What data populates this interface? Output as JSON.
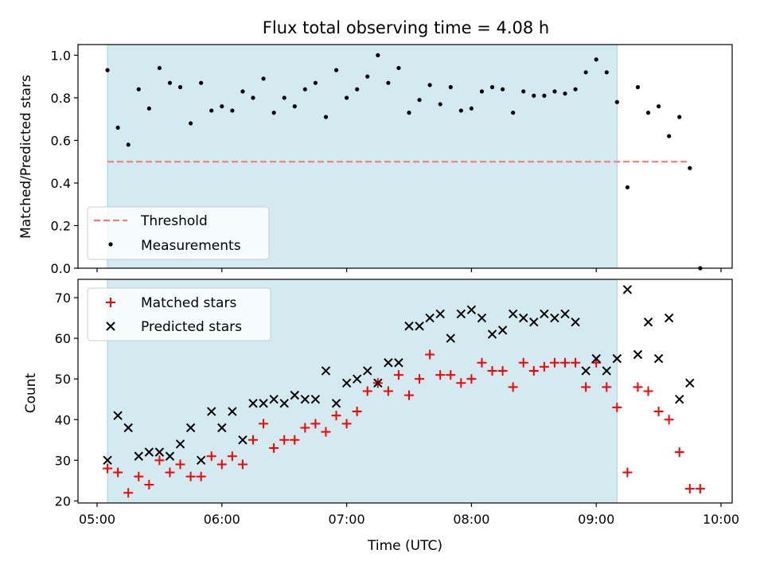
{
  "title": "Flux total observing time = 4.08 h",
  "colors": {
    "band": "#d2eaf0",
    "threshold": "#f08080",
    "measure": "#000000",
    "matched": "#ff0000",
    "predicted": "#000000"
  },
  "chart_data": [
    {
      "type": "scatter",
      "ylabel": "Matched/Predicted stars",
      "ylim": [
        0,
        1.05
      ],
      "yticks": [
        0,
        0.2,
        0.4,
        0.6,
        0.8,
        1.0
      ],
      "ytick_labels": [
        "0.0",
        "0.2",
        "0.4",
        "0.6",
        "0.8",
        "1.0"
      ],
      "xlim": [
        "05:00",
        "10:00"
      ],
      "shaded_span": [
        "05:05",
        "09:10"
      ],
      "threshold": {
        "value": 0.5,
        "x": [
          "05:05",
          "09:45"
        ]
      },
      "legend": {
        "position": "lower-left",
        "entries": [
          "Threshold",
          "Measurements"
        ]
      },
      "series": [
        {
          "name": "Measurements",
          "x": [
            "05:05",
            "05:10",
            "05:15",
            "05:20",
            "05:25",
            "05:30",
            "05:35",
            "05:40",
            "05:45",
            "05:50",
            "05:55",
            "06:00",
            "06:05",
            "06:10",
            "06:15",
            "06:20",
            "06:25",
            "06:30",
            "06:35",
            "06:40",
            "06:45",
            "06:50",
            "06:55",
            "07:00",
            "07:05",
            "07:10",
            "07:15",
            "07:20",
            "07:25",
            "07:30",
            "07:35",
            "07:40",
            "07:45",
            "07:50",
            "07:55",
            "08:00",
            "08:05",
            "08:10",
            "08:15",
            "08:20",
            "08:25",
            "08:30",
            "08:35",
            "08:40",
            "08:45",
            "08:50",
            "08:55",
            "09:00",
            "09:05",
            "09:10",
            "09:15",
            "09:20",
            "09:25",
            "09:30",
            "09:35",
            "09:40",
            "09:45",
            "09:50"
          ],
          "y": [
            0.93,
            0.66,
            0.58,
            0.84,
            0.75,
            0.94,
            0.87,
            0.85,
            0.68,
            0.87,
            0.74,
            0.76,
            0.74,
            0.83,
            0.8,
            0.89,
            0.73,
            0.8,
            0.76,
            0.84,
            0.87,
            0.71,
            0.93,
            0.8,
            0.84,
            0.9,
            1.0,
            0.87,
            0.94,
            0.73,
            0.79,
            0.86,
            0.77,
            0.85,
            0.74,
            0.75,
            0.83,
            0.85,
            0.84,
            0.73,
            0.83,
            0.81,
            0.81,
            0.83,
            0.82,
            0.84,
            0.92,
            0.98,
            0.92,
            0.78,
            0.38,
            0.85,
            0.73,
            0.76,
            0.62,
            0.71,
            0.47,
            0.0
          ]
        }
      ]
    },
    {
      "type": "scatter",
      "xlabel": "Time (UTC)",
      "ylabel": "Count",
      "ylim": [
        19.5,
        74.5
      ],
      "yticks": [
        20,
        30,
        40,
        50,
        60,
        70
      ],
      "ytick_labels": [
        "20",
        "30",
        "40",
        "50",
        "60",
        "70"
      ],
      "xlim": [
        "05:00",
        "10:00"
      ],
      "xticks": [
        "05:00",
        "06:00",
        "07:00",
        "08:00",
        "09:00",
        "10:00"
      ],
      "shaded_span": [
        "05:05",
        "09:10"
      ],
      "legend": {
        "position": "top-left",
        "entries": [
          "Matched stars",
          "Predicted stars"
        ]
      },
      "series": [
        {
          "name": "Matched stars",
          "x": [
            "05:05",
            "05:10",
            "05:15",
            "05:20",
            "05:25",
            "05:30",
            "05:35",
            "05:40",
            "05:45",
            "05:50",
            "05:55",
            "06:00",
            "06:05",
            "06:10",
            "06:15",
            "06:20",
            "06:25",
            "06:30",
            "06:35",
            "06:40",
            "06:45",
            "06:50",
            "06:55",
            "07:00",
            "07:05",
            "07:10",
            "07:15",
            "07:20",
            "07:25",
            "07:30",
            "07:35",
            "07:40",
            "07:45",
            "07:50",
            "07:55",
            "08:00",
            "08:05",
            "08:10",
            "08:15",
            "08:20",
            "08:25",
            "08:30",
            "08:35",
            "08:40",
            "08:45",
            "08:50",
            "08:55",
            "09:00",
            "09:05",
            "09:10",
            "09:15",
            "09:20",
            "09:25",
            "09:30",
            "09:35",
            "09:40",
            "09:45",
            "09:50"
          ],
          "y": [
            28,
            27,
            22,
            26,
            24,
            30,
            27,
            29,
            26,
            26,
            31,
            29,
            31,
            29,
            35,
            39,
            33,
            35,
            35,
            38,
            39,
            37,
            41,
            39,
            42,
            47,
            49,
            47,
            51,
            46,
            50,
            56,
            51,
            51,
            49,
            50,
            54,
            52,
            52,
            48,
            54,
            52,
            53,
            54,
            54,
            54,
            48,
            54,
            48,
            43,
            27,
            48,
            47,
            42,
            40,
            32,
            23,
            23
          ]
        },
        {
          "name": "Predicted stars",
          "x": [
            "05:05",
            "05:10",
            "05:15",
            "05:20",
            "05:25",
            "05:30",
            "05:35",
            "05:40",
            "05:45",
            "05:50",
            "05:55",
            "06:00",
            "06:05",
            "06:10",
            "06:15",
            "06:20",
            "06:25",
            "06:30",
            "06:35",
            "06:40",
            "06:45",
            "06:50",
            "06:55",
            "07:00",
            "07:05",
            "07:10",
            "07:15",
            "07:20",
            "07:25",
            "07:30",
            "07:35",
            "07:40",
            "07:45",
            "07:50",
            "07:55",
            "08:00",
            "08:05",
            "08:10",
            "08:15",
            "08:20",
            "08:25",
            "08:30",
            "08:35",
            "08:40",
            "08:45",
            "08:50",
            "08:55",
            "09:00",
            "09:05",
            "09:10",
            "09:15",
            "09:20",
            "09:25",
            "09:30",
            "09:35",
            "09:40",
            "09:45"
          ],
          "y": [
            30,
            41,
            38,
            31,
            32,
            32,
            31,
            34,
            38,
            30,
            42,
            38,
            42,
            35,
            44,
            44,
            45,
            44,
            46,
            45,
            45,
            52,
            44,
            49,
            50,
            52,
            49,
            54,
            54,
            63,
            63,
            65,
            66,
            60,
            66,
            67,
            65,
            61,
            62,
            66,
            65,
            64,
            66,
            65,
            66,
            64,
            52,
            55,
            52,
            55,
            72,
            56,
            64,
            55,
            65,
            45,
            49
          ]
        }
      ]
    }
  ]
}
